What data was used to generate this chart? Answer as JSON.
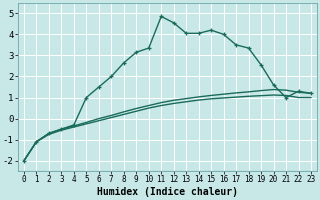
{
  "xlabel": "Humidex (Indice chaleur)",
  "bg_color": "#c8e8e8",
  "line_color": "#1a6b5a",
  "grid_color": "#ffffff",
  "xlim": [
    -0.5,
    23.5
  ],
  "ylim": [
    -2.5,
    5.5
  ],
  "xticks": [
    0,
    1,
    2,
    3,
    4,
    5,
    6,
    7,
    8,
    9,
    10,
    11,
    12,
    13,
    14,
    15,
    16,
    17,
    18,
    19,
    20,
    21,
    22,
    23
  ],
  "yticks": [
    -2,
    -1,
    0,
    1,
    2,
    3,
    4,
    5
  ],
  "series1_x": [
    0,
    1,
    2,
    3,
    4,
    5,
    6,
    7,
    8,
    9,
    10,
    11,
    12,
    13,
    14,
    15,
    16,
    17,
    18,
    19,
    20,
    21,
    22,
    23
  ],
  "series1_y": [
    -2.0,
    -1.1,
    -0.75,
    -0.55,
    -0.4,
    -0.25,
    -0.1,
    0.05,
    0.2,
    0.35,
    0.5,
    0.62,
    0.72,
    0.8,
    0.88,
    0.94,
    0.98,
    1.02,
    1.06,
    1.09,
    1.12,
    1.1,
    1.0,
    1.0
  ],
  "series2_x": [
    0,
    1,
    2,
    3,
    4,
    5,
    6,
    7,
    8,
    9,
    10,
    11,
    12,
    13,
    14,
    15,
    16,
    17,
    18,
    19,
    20,
    21,
    22,
    23
  ],
  "series2_y": [
    -2.0,
    -1.1,
    -0.7,
    -0.5,
    -0.35,
    -0.18,
    0.0,
    0.15,
    0.32,
    0.48,
    0.62,
    0.76,
    0.87,
    0.95,
    1.03,
    1.1,
    1.16,
    1.22,
    1.27,
    1.33,
    1.38,
    1.35,
    1.25,
    1.2
  ],
  "series3_x": [
    0,
    1,
    2,
    3,
    4,
    5,
    6,
    7,
    8,
    9,
    10,
    11,
    12,
    13,
    14,
    15,
    16,
    17,
    18,
    19,
    20,
    21,
    22,
    23
  ],
  "series3_y": [
    -2.0,
    -1.1,
    -0.7,
    -0.5,
    -0.3,
    1.0,
    1.5,
    2.0,
    2.65,
    3.15,
    3.35,
    4.85,
    4.55,
    4.05,
    4.05,
    4.2,
    4.0,
    3.5,
    3.35,
    2.55,
    1.6,
    1.0,
    1.3,
    1.2
  ],
  "xlabel_fontsize": 7,
  "tick_fontsize": 5.5,
  "ytick_fontsize": 6.5
}
